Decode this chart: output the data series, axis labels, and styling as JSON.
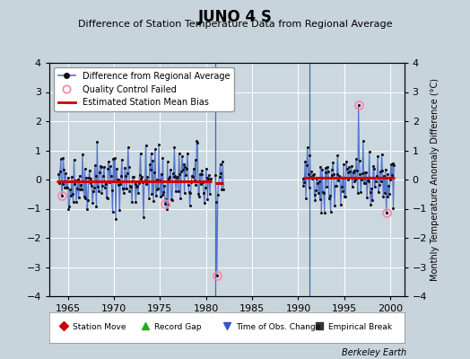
{
  "title": "JUNO 4 S",
  "subtitle": "Difference of Station Temperature Data from Regional Average",
  "ylabel_right": "Monthly Temperature Anomaly Difference (°C)",
  "ylim": [
    -4,
    4
  ],
  "yticks": [
    -4,
    -3,
    -2,
    -1,
    0,
    1,
    2,
    3,
    4
  ],
  "xlim": [
    1963.0,
    2001.5
  ],
  "xticks": [
    1965,
    1970,
    1975,
    1980,
    1985,
    1990,
    1995,
    2000
  ],
  "bg_color": "#c8d4dc",
  "plot_bg_color": "#ccd8e0",
  "grid_color": "#ffffff",
  "line_color": "#5577cc",
  "marker_color": "#111111",
  "bias_color": "#cc0000",
  "qc_fail_color": "#ff88aa",
  "segment1_bias": -0.05,
  "segment2_bias": -0.12,
  "segment3_bias": 0.05,
  "gap_line_x1": 1981.0,
  "gap_line_x2": 1991.2,
  "record_gap1_x": 1981.0,
  "record_gap2_x": 1991.0,
  "obs_change_x": 1981.5,
  "berkeley_earth_text": "Berkeley Earth",
  "seg1_start": 1963.8,
  "seg1_end": 1980.6,
  "seg2_start": 1981.0,
  "seg2_end": 1981.9,
  "seg3_start": 1990.5,
  "seg3_end": 2000.5
}
